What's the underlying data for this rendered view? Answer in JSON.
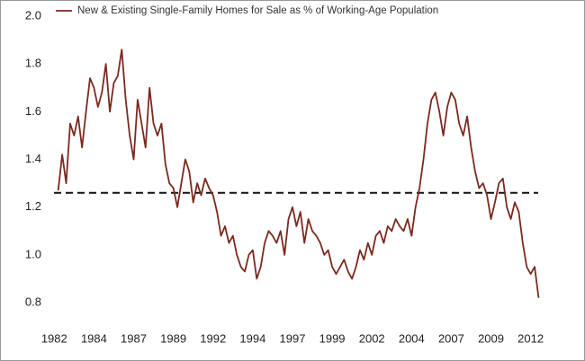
{
  "chart_data": {
    "type": "line",
    "series": [
      {
        "name": "New & Existing Single-Family Homes for Sale as % of Working-Age Population",
        "color": "#7b2a1f",
        "x": [
          1982.25,
          1982.5,
          1982.75,
          1983,
          1983.25,
          1983.5,
          1983.75,
          1984,
          1984.25,
          1984.5,
          1984.75,
          1985,
          1985.25,
          1985.5,
          1985.75,
          1986,
          1986.25,
          1986.5,
          1986.75,
          1987,
          1987.25,
          1987.5,
          1987.75,
          1988,
          1988.25,
          1988.5,
          1988.75,
          1989,
          1989.25,
          1989.5,
          1989.75,
          1990,
          1990.25,
          1990.5,
          1990.75,
          1991,
          1991.25,
          1991.5,
          1991.75,
          1992,
          1992.25,
          1992.5,
          1992.75,
          1993,
          1993.25,
          1993.5,
          1993.75,
          1994,
          1994.25,
          1994.5,
          1994.75,
          1995,
          1995.25,
          1995.5,
          1995.75,
          1996,
          1996.25,
          1996.5,
          1996.75,
          1997,
          1997.25,
          1997.5,
          1997.75,
          1998,
          1998.25,
          1998.5,
          1998.75,
          1999,
          1999.25,
          1999.5,
          1999.75,
          2000,
          2000.25,
          2000.5,
          2000.75,
          2001,
          2001.25,
          2001.5,
          2001.75,
          2002,
          2002.25,
          2002.5,
          2002.75,
          2003,
          2003.25,
          2003.5,
          2003.75,
          2004,
          2004.25,
          2004.5,
          2004.75,
          2005,
          2005.25,
          2005.5,
          2005.75,
          2006,
          2006.25,
          2006.5,
          2006.75,
          2007,
          2007.25,
          2007.5,
          2007.75,
          2008,
          2008.25,
          2008.5,
          2008.75,
          2009,
          2009.25,
          2009.5,
          2009.75,
          2010,
          2010.25,
          2010.5,
          2010.75,
          2011,
          2011.25,
          2011.5,
          2011.75,
          2012,
          2012.25,
          2012.5
        ],
        "values": [
          1.27,
          1.42,
          1.3,
          1.55,
          1.5,
          1.58,
          1.45,
          1.6,
          1.74,
          1.7,
          1.62,
          1.68,
          1.8,
          1.6,
          1.72,
          1.75,
          1.86,
          1.65,
          1.5,
          1.4,
          1.65,
          1.55,
          1.45,
          1.7,
          1.55,
          1.5,
          1.55,
          1.38,
          1.3,
          1.28,
          1.2,
          1.3,
          1.4,
          1.35,
          1.22,
          1.3,
          1.25,
          1.32,
          1.28,
          1.25,
          1.18,
          1.08,
          1.12,
          1.05,
          1.08,
          1.0,
          0.95,
          0.93,
          1.0,
          1.02,
          0.9,
          0.95,
          1.05,
          1.1,
          1.08,
          1.05,
          1.1,
          1.0,
          1.15,
          1.2,
          1.12,
          1.18,
          1.05,
          1.15,
          1.1,
          1.08,
          1.05,
          1.0,
          1.02,
          0.95,
          0.92,
          0.95,
          0.98,
          0.93,
          0.9,
          0.95,
          1.02,
          0.98,
          1.05,
          1.0,
          1.08,
          1.1,
          1.05,
          1.12,
          1.1,
          1.15,
          1.12,
          1.1,
          1.15,
          1.08,
          1.2,
          1.28,
          1.4,
          1.55,
          1.65,
          1.68,
          1.6,
          1.5,
          1.62,
          1.68,
          1.65,
          1.55,
          1.5,
          1.58,
          1.45,
          1.35,
          1.28,
          1.3,
          1.25,
          1.15,
          1.22,
          1.3,
          1.32,
          1.2,
          1.15,
          1.22,
          1.18,
          1.05,
          0.95,
          0.92,
          0.95,
          0.82
        ]
      }
    ],
    "reference_line": 1.26,
    "xlim": [
      1981.7,
      2012.7
    ],
    "xticks": [
      1982,
      {
        "value": 1984.5,
        "label": "1984"
      },
      1987,
      {
        "value": 1989.5,
        "label": "1989"
      },
      1992,
      {
        "value": 1994.5,
        "label": "1994"
      },
      1997,
      {
        "value": 1999.5,
        "label": "1999"
      },
      2002,
      {
        "value": 2004.5,
        "label": "2004"
      },
      2007,
      {
        "value": 2009.5,
        "label": "2009"
      },
      2012
    ],
    "ylim": [
      0.8,
      2.0
    ],
    "yticks": [
      0.8,
      {
        "value": 1.0,
        "label": "1.0"
      },
      1.2,
      1.4,
      1.6,
      1.8,
      {
        "value": 2.0,
        "label": "2.0"
      }
    ]
  }
}
